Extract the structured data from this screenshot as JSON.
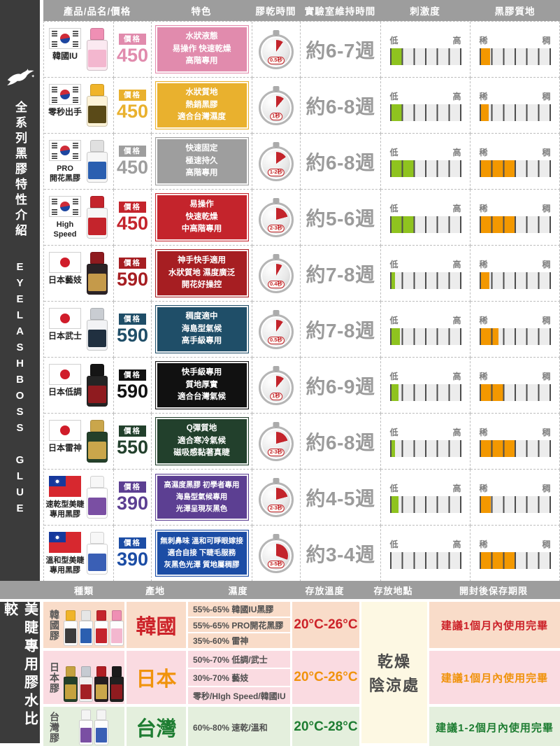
{
  "page": {
    "sidebar_top": {
      "icon": "swallow-icon",
      "title_zh": "全系列黑膠特性介紹",
      "title_en": "EYELASHBOSS GLUE"
    },
    "colors": {
      "irritation_fill": "#8fc31f",
      "texture_fill": "#f39800",
      "header_gray": "#9d9d9d",
      "sidebar_dark": "#3b3b3b",
      "timer_red": "#c3242b"
    }
  },
  "table": {
    "headers": [
      "產品/品名/價格",
      "特色",
      "膠乾時間",
      "實驗室維持時間",
      "刺激度",
      "黑膠質地"
    ],
    "price_tag_label": "價格",
    "irritation_low": "低",
    "irritation_high": "高",
    "texture_thin": "稀",
    "texture_thick": "稠",
    "bar_segments": 6,
    "rows": [
      {
        "name": "韓國IU",
        "flag": "kr",
        "price": "450",
        "color": "#e18bad",
        "features": [
          "水狀液態",
          "易操作 快速乾燥",
          "高階專用"
        ],
        "dry": "0.5秒",
        "weeks": "約6-7週",
        "irritation": 1.0,
        "texture": 0.8,
        "timer_deg": 35,
        "bottle": {
          "cap": "#ef8fb4",
          "body": "#fbe9f1",
          "label": "#f3b7cf"
        }
      },
      {
        "name": "零秒出手",
        "flag": "kr",
        "price": "450",
        "color": "#e9b12e",
        "features": [
          "水狀質地",
          "熱銷黑膠",
          "適合台灣濕度"
        ],
        "dry": "1秒",
        "weeks": "約6-8週",
        "irritation": 1.0,
        "texture": 0.7,
        "timer_deg": 40,
        "bottle": {
          "cap": "#f0b42a",
          "body": "#fdf3d8",
          "label": "#5a4a18"
        }
      },
      {
        "name": "PRO\n開花黑膠",
        "flag": "kr",
        "price": "450",
        "color": "#9e9e9e",
        "features": [
          "快速固定",
          "極速持久",
          "高階專用"
        ],
        "dry": "1-2秒",
        "weeks": "約6-8週",
        "irritation": 2.0,
        "texture": 3.0,
        "timer_deg": 55,
        "bottle": {
          "cap": "#e0e0e0",
          "body": "#f6f6f6",
          "label": "#2b5fb0"
        }
      },
      {
        "name": "High\nSpeed",
        "flag": "kr",
        "price": "450",
        "color": "#c4242c",
        "features": [
          "易操作",
          "快速乾燥",
          "中高階專用"
        ],
        "dry": "2-3秒",
        "weeks": "約5-6週",
        "irritation": 2.0,
        "texture": 3.0,
        "timer_deg": 75,
        "bottle": {
          "cap": "#c4242c",
          "body": "#f7f7f7",
          "label": "#c4242c"
        }
      },
      {
        "name": "日本藝妓",
        "flag": "jp",
        "price": "590",
        "color": "#a61e22",
        "features": [
          "神手快手適用",
          "水狀質地 濕度廣泛",
          "開花好操控"
        ],
        "dry": "0.4秒",
        "weeks": "約7-8週",
        "irritation": 0.3,
        "texture": 0.75,
        "timer_deg": 30,
        "bottle": {
          "cap": "#8f1b1f",
          "body": "#2b2326",
          "label": "#c59a4a"
        }
      },
      {
        "name": "日本武士",
        "flag": "jp",
        "price": "590",
        "color": "#1f4e68",
        "features": [
          "稠度適中",
          "海島型氣候",
          "高手級專用"
        ],
        "dry": "0.5秒",
        "weeks": "約7-8週",
        "irritation": 0.75,
        "texture": 1.5,
        "timer_deg": 35,
        "bottle": {
          "cap": "#c9cdd2",
          "body": "#f2f3f5",
          "label": "#203040"
        }
      },
      {
        "name": "日本低調",
        "flag": "jp",
        "price": "590",
        "color": "#111111",
        "features": [
          "快手級專用",
          "質地厚實",
          "適合台灣氣候"
        ],
        "dry": "1秒",
        "weeks": "約6-9週",
        "irritation": 0.65,
        "texture": 2.0,
        "timer_deg": 40,
        "bottle": {
          "cap": "#151515",
          "body": "#242424",
          "label": "#8f1b1f"
        }
      },
      {
        "name": "日本雷神",
        "flag": "jp",
        "price": "550",
        "color": "#22402c",
        "features": [
          "Q彈質地",
          "適合寒冷氣候",
          "磁吸感黏著真睫"
        ],
        "dry": "2-3秒",
        "weeks": "約6-8週",
        "irritation": 0.3,
        "texture": 3.0,
        "timer_deg": 75,
        "bottle": {
          "cap": "#caa64b",
          "body": "#24402a",
          "label": "#caa64b"
        }
      },
      {
        "name": "速乾型美睫\n專用黑膠",
        "flag": "tw",
        "price": "390",
        "color": "#5c3f92",
        "features": [
          "高濕度黑膠 初學者專用",
          "海島型氣候專用",
          "光澤呈現灰黑色"
        ],
        "dry": "2-3秒",
        "weeks": "約4-5週",
        "irritation": 0.65,
        "texture": 0.85,
        "timer_deg": 75,
        "bottle": {
          "cap": "#f7f7f7",
          "body": "#ffffff",
          "label": "#7a4fa3"
        }
      },
      {
        "name": "溫和型美睫\n專用黑膠",
        "flag": "tw",
        "price": "390",
        "color": "#1c4da5",
        "features": [
          "無刺鼻味 溫和可睜眼嫁接",
          "適合自接 下睫毛服務",
          "灰黑色光澤 質地屬稠膠"
        ],
        "dry": "3-5秒",
        "weeks": "約3-4週",
        "irritation": 0.0,
        "texture": 3.0,
        "timer_deg": 110,
        "bottle": {
          "cap": "#f7f7f7",
          "body": "#ffffff",
          "label": "#3a5fb5"
        }
      }
    ]
  },
  "comparison": {
    "headers": [
      "種類",
      "產地",
      "濕度",
      "存放溫度",
      "存放地點",
      "開封後保存期限"
    ],
    "sidebar_title": "美睫專用膠水比較",
    "storage_place_lines": [
      "乾燥",
      "陰涼處"
    ],
    "rows": [
      {
        "type": "韓國膠",
        "origin": "韓國",
        "humidity": [
          "55%-65% 韓國IU黑膠",
          "55%-65% PRO開花黑膠",
          "35%-60% 雷神"
        ],
        "temp": "20°C-26°C",
        "shelf": "建議1個月內使用完畢",
        "accent": "#cc2229",
        "bg": "#f9dcc9",
        "bottles": [
          {
            "cap": "#f0b42a",
            "body": "#fdfdfd",
            "label": "#3c3c3c"
          },
          {
            "cap": "#e6e6e6",
            "body": "#fdfdfd",
            "label": "#2b5fb0"
          },
          {
            "cap": "#c4242c",
            "body": "#fdfdfd",
            "label": "#c4242c"
          },
          {
            "cap": "#ef8fb4",
            "body": "#fdfdfd",
            "label": "#f3b7cf"
          }
        ]
      },
      {
        "type": "日本膠",
        "origin": "日本",
        "humidity": [
          "50%-70% 低調/武士",
          "30%-70% 藝妓",
          "零秒/HIgh Speed/韓國IU"
        ],
        "temp": "20°C-26°C",
        "shelf": "建議1個月內使用完畢",
        "accent": "#f0930c",
        "bg": "#fadbe1",
        "bottles": [
          {
            "cap": "#c5a23f",
            "body": "#24402a",
            "label": "#c5a23f"
          },
          {
            "cap": "#c6cbd2",
            "body": "#f0f0f0",
            "label": "#a32025"
          },
          {
            "cap": "#b01d23",
            "body": "#241d20",
            "label": "#caa64b"
          },
          {
            "cap": "#1a1a1a",
            "body": "#202020",
            "label": "#8f1b1f"
          }
        ]
      },
      {
        "type": "台灣膠",
        "origin": "台灣",
        "humidity": [
          "60%-80% 速乾/溫和"
        ],
        "temp": "20°C-28°C",
        "shelf": "建議1-2個月內使用完畢",
        "accent": "#1e7d32",
        "bg": "#e4efdd",
        "bottles": [
          {
            "cap": "#f4f4f4",
            "body": "#fdfdfd",
            "label": "#7a4fa3"
          },
          {
            "cap": "#f4f4f4",
            "body": "#fdfdfd",
            "label": "#3a5fb5"
          }
        ]
      }
    ]
  }
}
